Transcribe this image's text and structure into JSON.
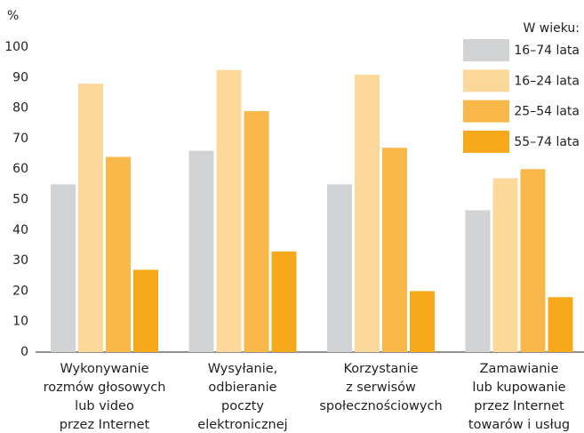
{
  "chart_data": {
    "type": "bar",
    "y_label": "%",
    "legend_title": "W wieku:",
    "categories": [
      [
        "Wykonywanie",
        "rozmów głosowych",
        "lub video",
        "przez Internet"
      ],
      [
        "Wysyłanie,",
        "odbieranie",
        "poczty",
        "elektronicznej"
      ],
      [
        "Korzystanie",
        "z serwisów",
        "społecznościowych"
      ],
      [
        "Zamawianie",
        "lub kupowanie",
        "przez Internet",
        "towarów i usług"
      ]
    ],
    "series": [
      {
        "name": "16–74 lata",
        "color": "#d1d3d4",
        "values": [
          55,
          66,
          55,
          46.5
        ]
      },
      {
        "name": "16–24 lata",
        "color": "#fdd89b",
        "values": [
          88,
          92.5,
          91,
          57
        ]
      },
      {
        "name": "25–54 lata",
        "color": "#fbb84a",
        "values": [
          64,
          79,
          67,
          60
        ]
      },
      {
        "name": "55–74 lata",
        "color": "#f8a81b",
        "values": [
          27,
          33,
          20,
          18
        ]
      }
    ],
    "ylim": [
      0,
      100
    ],
    "yticks": [
      0,
      10,
      20,
      30,
      40,
      50,
      60,
      70,
      80,
      90,
      100
    ],
    "grid": false,
    "legend": "top-right"
  }
}
